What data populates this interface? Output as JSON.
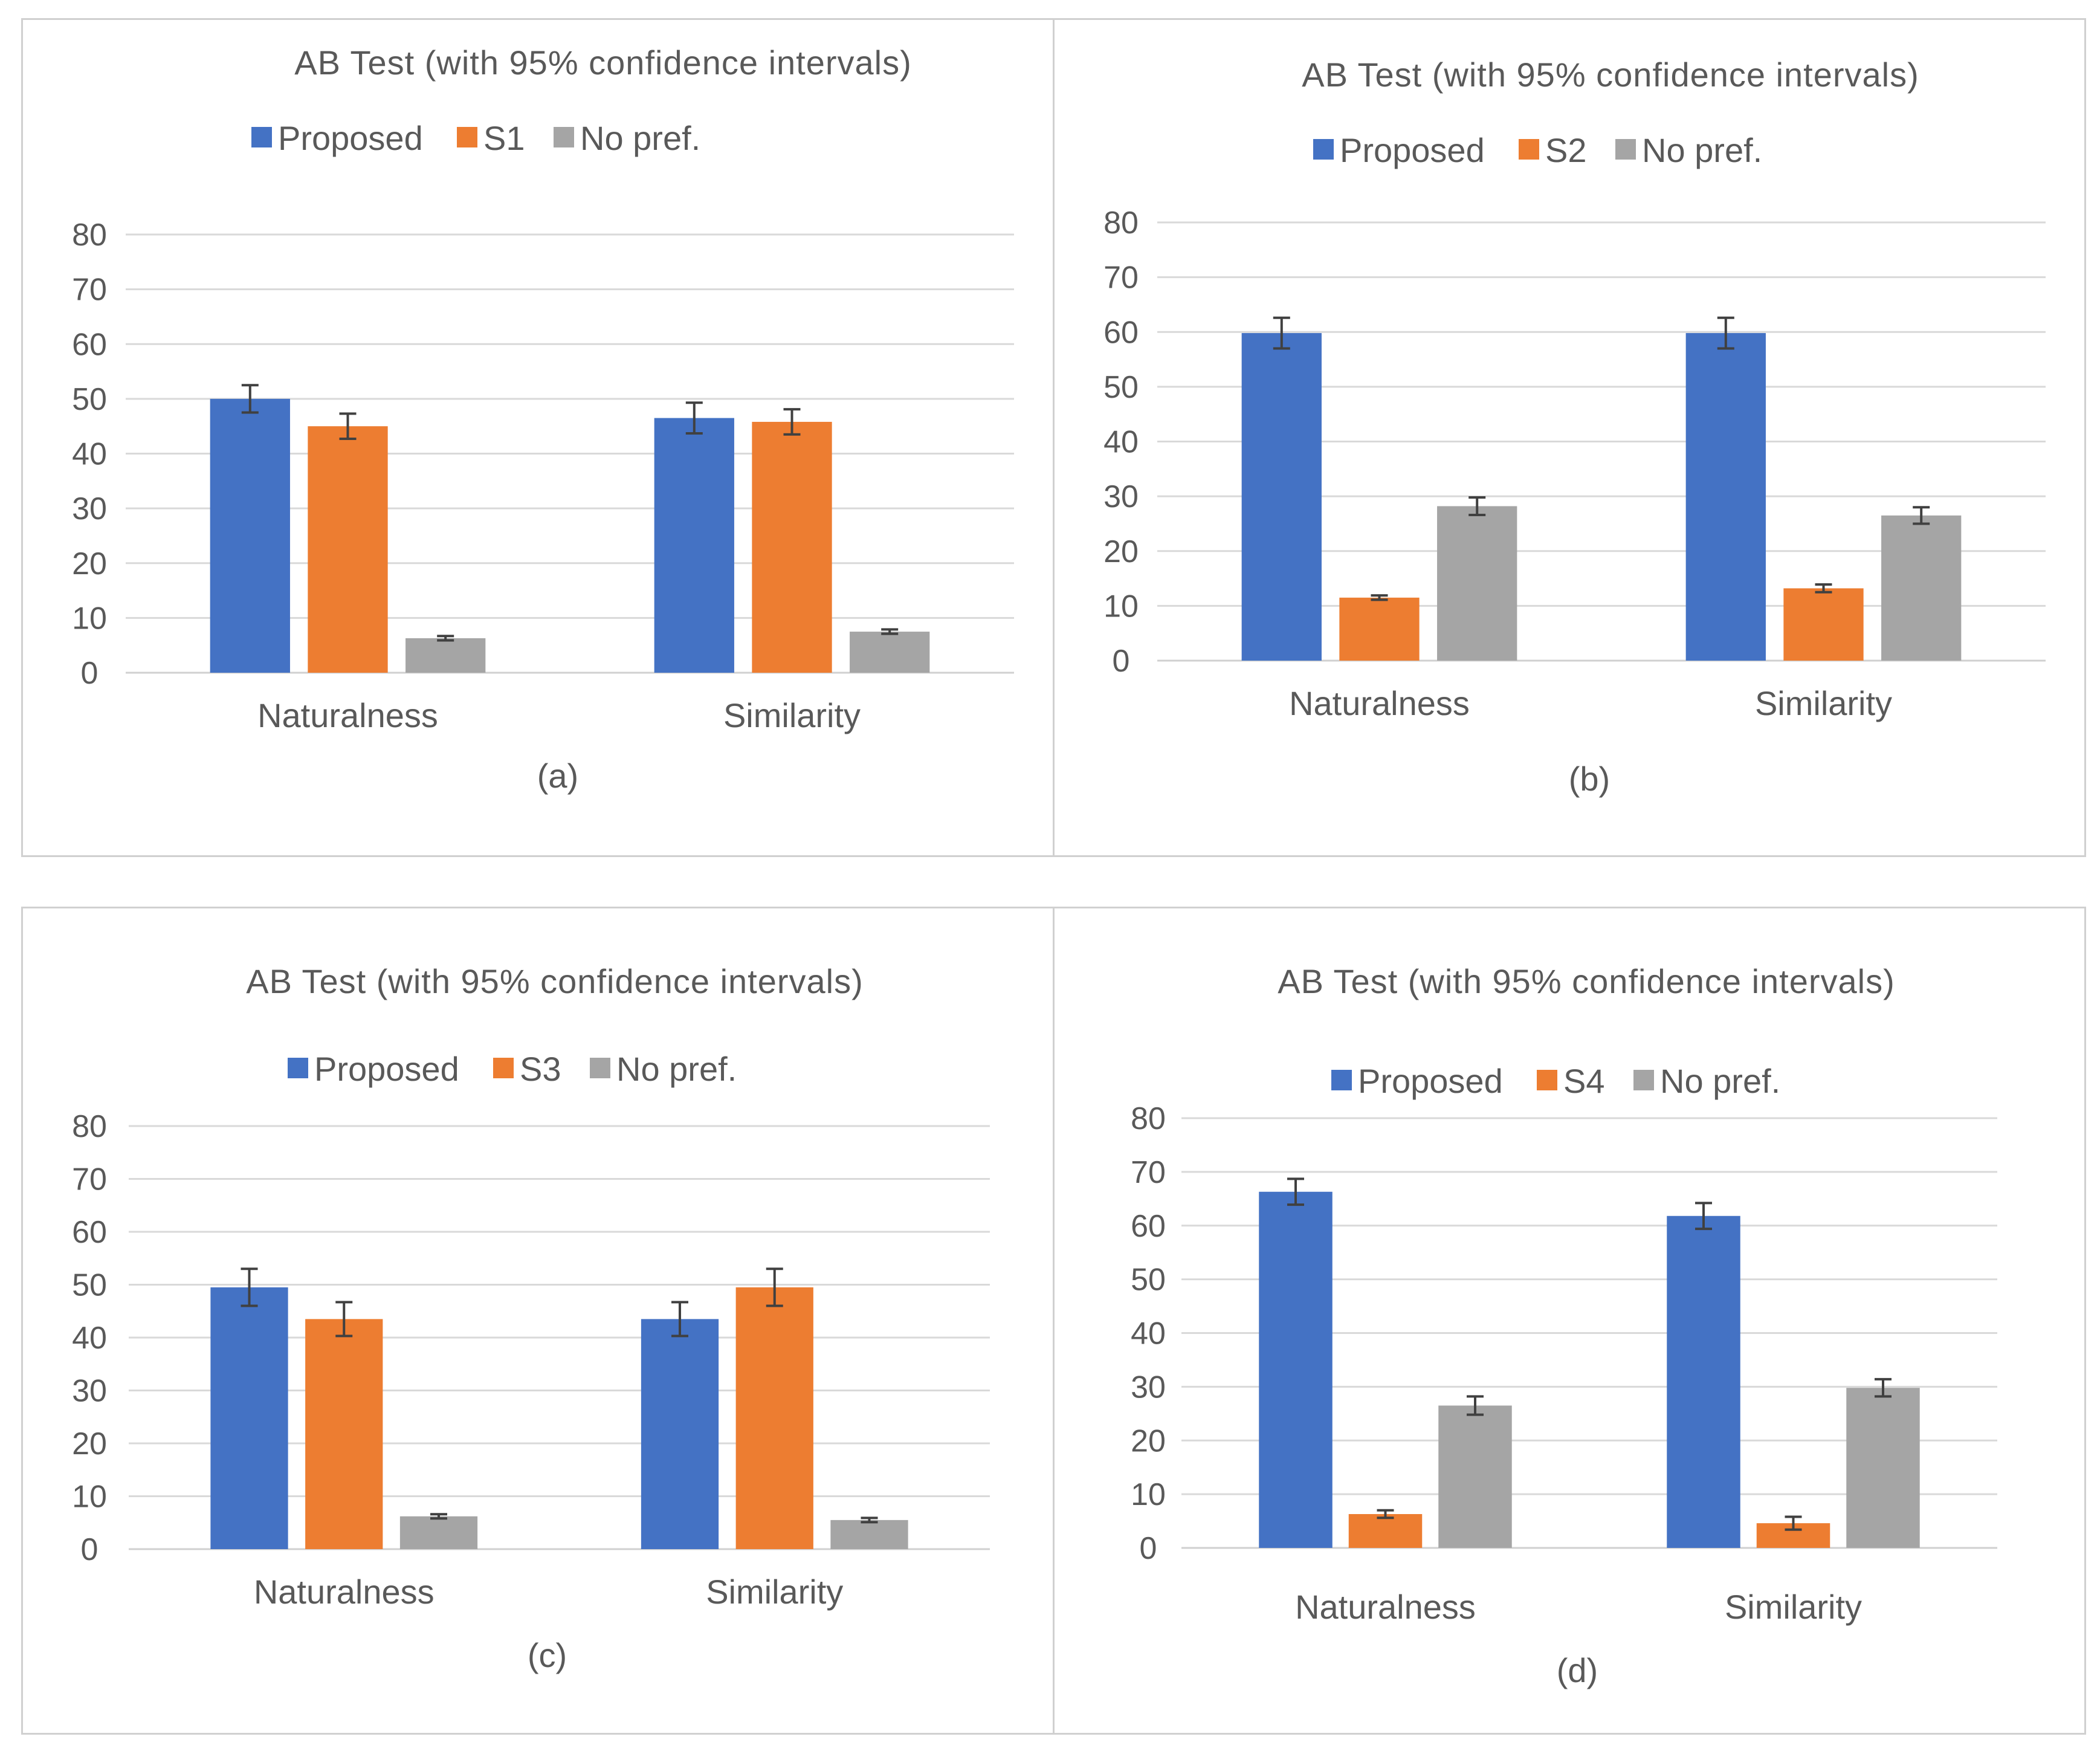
{
  "colors": {
    "proposed": "#4472C4",
    "baseline": "#ED7D31",
    "nopref": "#A5A5A5"
  },
  "chart_data": [
    {
      "type": "bar",
      "title": "AB Test (with 95% confidence intervals)",
      "caption": "(a)",
      "categories": [
        "Naturalness",
        "Similarity"
      ],
      "ylim": [
        0,
        80
      ],
      "yticks": [
        "0",
        "10",
        "20",
        "30",
        "40",
        "50",
        "60",
        "70",
        "80"
      ],
      "series": [
        {
          "name": "Proposed",
          "color": "#4472C4",
          "values": [
            50,
            46.5
          ],
          "err": [
            2.5,
            2.8
          ]
        },
        {
          "name": "S1",
          "color": "#ED7D31",
          "values": [
            45,
            45.8
          ],
          "err": [
            2.3,
            2.3
          ]
        },
        {
          "name": "No pref.",
          "color": "#A5A5A5",
          "values": [
            6.3,
            7.5
          ],
          "err": [
            0.4,
            0.4
          ]
        }
      ]
    },
    {
      "type": "bar",
      "title": "AB Test (with 95% confidence intervals)",
      "caption": "(b)",
      "categories": [
        "Naturalness",
        "Similarity"
      ],
      "ylim": [
        0,
        80
      ],
      "yticks": [
        "0",
        "10",
        "20",
        "30",
        "40",
        "50",
        "60",
        "70",
        "80"
      ],
      "series": [
        {
          "name": "Proposed",
          "color": "#4472C4",
          "values": [
            59.8,
            59.8
          ],
          "err": [
            2.8,
            2.8
          ]
        },
        {
          "name": "S2",
          "color": "#ED7D31",
          "values": [
            11.5,
            13.2
          ],
          "err": [
            0.4,
            0.7
          ]
        },
        {
          "name": "No pref.",
          "color": "#A5A5A5",
          "values": [
            28.2,
            26.5
          ],
          "err": [
            1.6,
            1.5
          ]
        }
      ]
    },
    {
      "type": "bar",
      "title": "AB Test (with 95% confidence intervals)",
      "caption": "(c)",
      "categories": [
        "Naturalness",
        "Similarity"
      ],
      "ylim": [
        0,
        80
      ],
      "yticks": [
        "0",
        "10",
        "20",
        "30",
        "40",
        "50",
        "60",
        "70",
        "80"
      ],
      "series": [
        {
          "name": "Proposed",
          "color": "#4472C4",
          "values": [
            49.5,
            43.5
          ],
          "err": [
            3.5,
            3.2
          ]
        },
        {
          "name": "S3",
          "color": "#ED7D31",
          "values": [
            43.5,
            49.5
          ],
          "err": [
            3.2,
            3.5
          ]
        },
        {
          "name": "No pref.",
          "color": "#A5A5A5",
          "values": [
            6.2,
            5.5
          ],
          "err": [
            0.4,
            0.4
          ]
        }
      ]
    },
    {
      "type": "bar",
      "title": "AB Test (with 95% confidence intervals)",
      "caption": "(d)",
      "categories": [
        "Naturalness",
        "Similarity"
      ],
      "ylim": [
        0,
        80
      ],
      "yticks": [
        "0",
        "10",
        "20",
        "30",
        "40",
        "50",
        "60",
        "70",
        "80"
      ],
      "series": [
        {
          "name": "Proposed",
          "color": "#4472C4",
          "values": [
            66.3,
            61.8
          ],
          "err": [
            2.4,
            2.4
          ]
        },
        {
          "name": "S4",
          "color": "#ED7D31",
          "values": [
            6.3,
            4.6
          ],
          "err": [
            0.7,
            1.2
          ]
        },
        {
          "name": "No pref.",
          "color": "#A5A5A5",
          "values": [
            26.5,
            29.8
          ],
          "err": [
            1.7,
            1.6
          ]
        }
      ]
    }
  ]
}
